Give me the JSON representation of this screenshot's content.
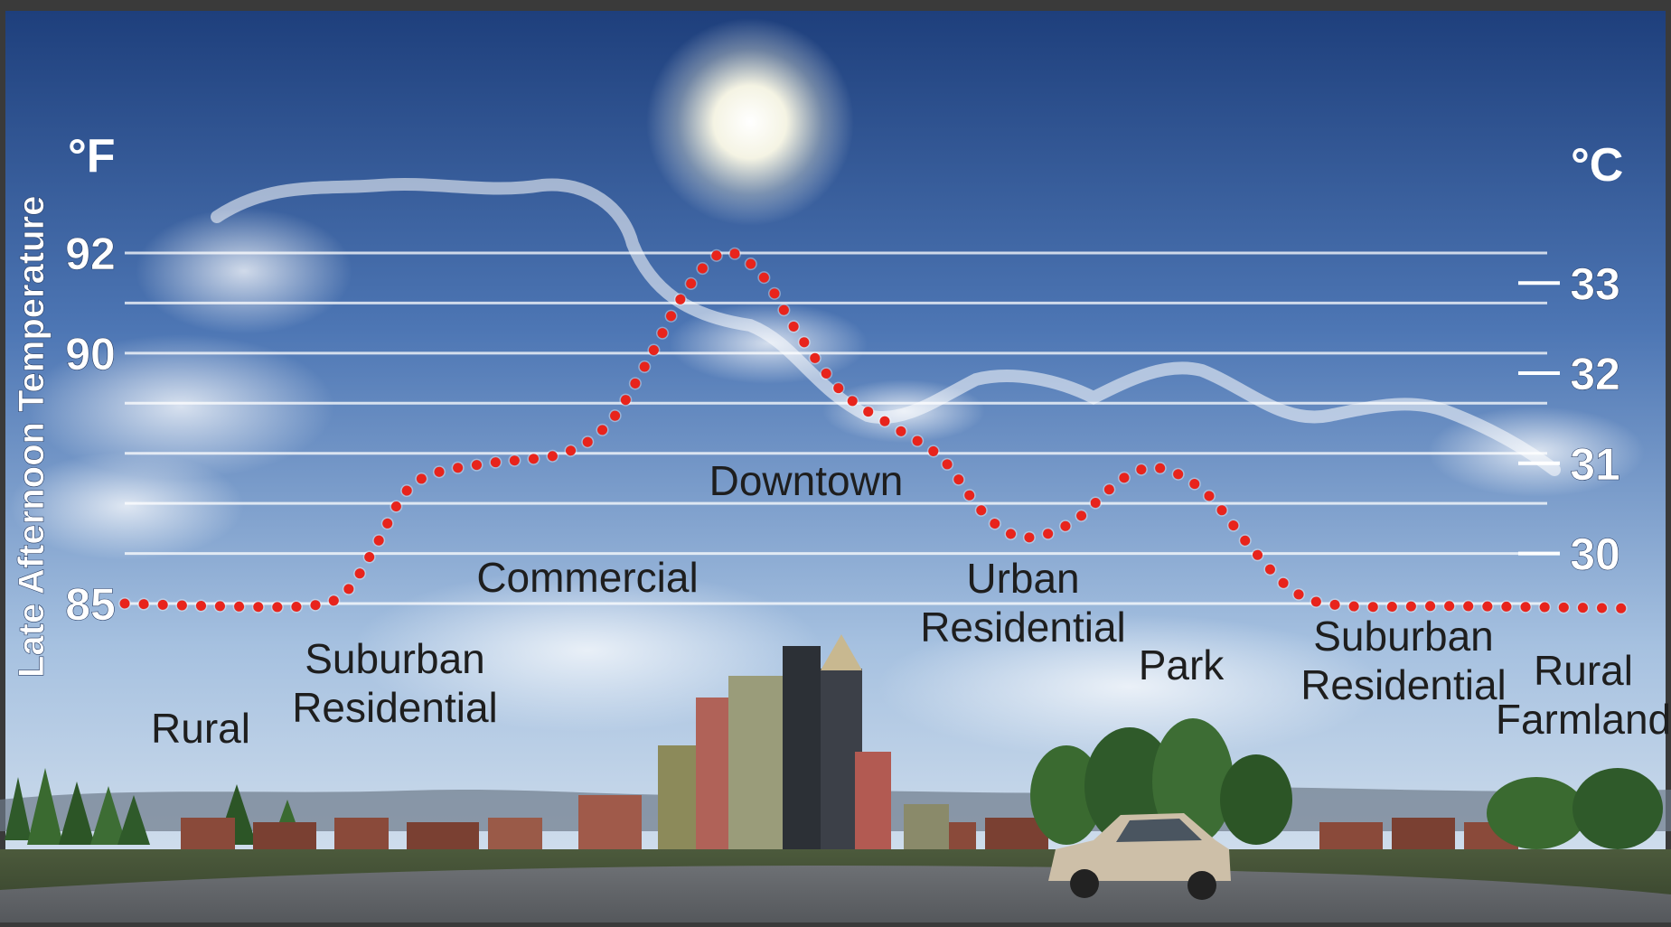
{
  "chart_data": {
    "type": "line",
    "title": "",
    "ylabel": "Late Afternoon Temperature",
    "unit_left": "°F",
    "unit_right": "°C",
    "y_left_ticks": [
      85,
      90,
      92
    ],
    "y_right_ticks": [
      30,
      31,
      32,
      33
    ],
    "ylim_f": [
      85,
      92
    ],
    "grid": true,
    "series": [
      {
        "line_style": "dotted",
        "color": "#e8241c",
        "points": [
          {
            "x": 0.0,
            "y": 85.0
          },
          {
            "x": 0.06,
            "y": 84.95
          },
          {
            "x": 0.12,
            "y": 84.95
          },
          {
            "x": 0.145,
            "y": 85.2
          },
          {
            "x": 0.165,
            "y": 86.1
          },
          {
            "x": 0.185,
            "y": 87.2
          },
          {
            "x": 0.205,
            "y": 87.6
          },
          {
            "x": 0.24,
            "y": 87.8
          },
          {
            "x": 0.29,
            "y": 88.0
          },
          {
            "x": 0.32,
            "y": 88.6
          },
          {
            "x": 0.345,
            "y": 89.8
          },
          {
            "x": 0.37,
            "y": 91.2
          },
          {
            "x": 0.395,
            "y": 92.0
          },
          {
            "x": 0.42,
            "y": 91.6
          },
          {
            "x": 0.445,
            "y": 90.4
          },
          {
            "x": 0.475,
            "y": 89.2
          },
          {
            "x": 0.51,
            "y": 88.5
          },
          {
            "x": 0.54,
            "y": 87.9
          },
          {
            "x": 0.565,
            "y": 86.9
          },
          {
            "x": 0.585,
            "y": 86.4
          },
          {
            "x": 0.605,
            "y": 86.35
          },
          {
            "x": 0.63,
            "y": 86.7
          },
          {
            "x": 0.66,
            "y": 87.5
          },
          {
            "x": 0.685,
            "y": 87.7
          },
          {
            "x": 0.715,
            "y": 87.2
          },
          {
            "x": 0.745,
            "y": 86.1
          },
          {
            "x": 0.775,
            "y": 85.2
          },
          {
            "x": 0.81,
            "y": 84.95
          },
          {
            "x": 0.88,
            "y": 84.95
          },
          {
            "x": 1.0,
            "y": 84.9
          }
        ]
      }
    ],
    "zones": [
      {
        "lines": [
          "Rural"
        ]
      },
      {
        "lines": [
          "Suburban",
          "Residential"
        ]
      },
      {
        "lines": [
          "Commercial"
        ]
      },
      {
        "lines": [
          "Downtown"
        ]
      },
      {
        "lines": [
          "Urban",
          "Residential"
        ]
      },
      {
        "lines": [
          "Park"
        ]
      },
      {
        "lines": [
          "Suburban",
          "Residential"
        ]
      },
      {
        "lines": [
          "Rural",
          "Farmland"
        ]
      }
    ]
  }
}
